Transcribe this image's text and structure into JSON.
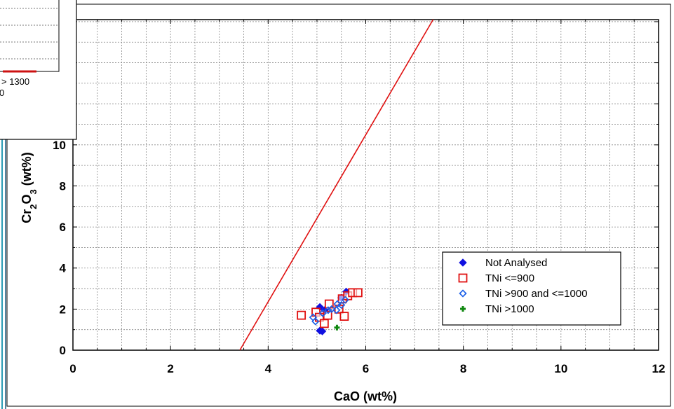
{
  "inset": {
    "label_line1": "> 1300",
    "label_line2": "0"
  },
  "chart_data": {
    "type": "scatter",
    "xlabel": "CaO (wt%)",
    "ylabel": "Cr2O3 (wt%)",
    "xlim": [
      0,
      12
    ],
    "ylim": [
      0,
      16.1
    ],
    "x_ticks": [
      0,
      2,
      4,
      6,
      8,
      10,
      12
    ],
    "y_ticks": [
      0,
      2,
      4,
      6,
      8,
      10
    ],
    "grid": true,
    "legend_position": "bottom-right",
    "series": [
      {
        "name": "Not Analysed",
        "marker": "filled-diamond",
        "color": "#1010e0",
        "points": [
          [
            5.06,
            0.95
          ],
          [
            5.11,
            0.92
          ],
          [
            5.06,
            2.1
          ],
          [
            5.16,
            1.95
          ],
          [
            5.5,
            2.55
          ],
          [
            5.6,
            2.85
          ]
        ]
      },
      {
        "name": "TNi <=900",
        "marker": "open-square",
        "color": "#e01010",
        "points": [
          [
            4.68,
            1.7
          ],
          [
            4.98,
            1.85
          ],
          [
            5.05,
            1.6
          ],
          [
            5.15,
            1.3
          ],
          [
            5.22,
            1.7
          ],
          [
            5.25,
            2.25
          ],
          [
            5.45,
            2.0
          ],
          [
            5.52,
            2.5
          ],
          [
            5.56,
            1.65
          ],
          [
            5.63,
            2.65
          ],
          [
            5.73,
            2.8
          ],
          [
            5.84,
            2.8
          ]
        ]
      },
      {
        "name": "TNi >900 and <=1000",
        "marker": "open-diamond",
        "color": "#1a5fe8",
        "points": [
          [
            4.92,
            1.6
          ],
          [
            4.97,
            1.4
          ],
          [
            5.12,
            1.8
          ],
          [
            5.23,
            1.95
          ],
          [
            5.3,
            2.0
          ],
          [
            5.4,
            1.95
          ],
          [
            5.5,
            2.2
          ],
          [
            5.58,
            2.45
          ],
          [
            5.42,
            2.25
          ]
        ]
      },
      {
        "name": "TNi >1000",
        "marker": "plus",
        "color": "#118811",
        "points": [
          [
            5.41,
            1.1
          ]
        ]
      }
    ],
    "line": {
      "color": "#e01010",
      "points": [
        [
          3.42,
          0
        ],
        [
          7.38,
          16.1
        ]
      ]
    }
  }
}
